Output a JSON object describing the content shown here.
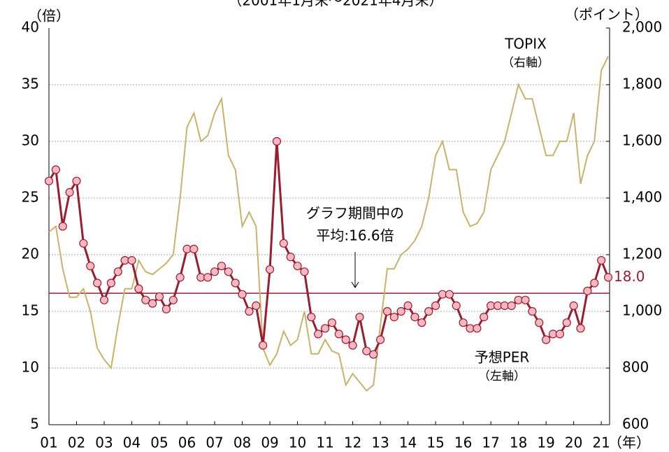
{
  "chart_data": {
    "type": "line",
    "subtitle": "（2001年1月末～2021年4月末）",
    "y_unit": "（倍）",
    "y2_unit": "（ポイント）",
    "x_unit": "（年）",
    "xlim": [
      2001,
      2021.3
    ],
    "xticks": [
      {
        "value": 2001,
        "label": "01"
      },
      {
        "value": 2002,
        "label": "02"
      },
      {
        "value": 2003,
        "label": "03"
      },
      {
        "value": 2004,
        "label": "04"
      },
      {
        "value": 2005,
        "label": "05"
      },
      {
        "value": 2006,
        "label": "06"
      },
      {
        "value": 2007,
        "label": "07"
      },
      {
        "value": 2008,
        "label": "08"
      },
      {
        "value": 2009,
        "label": "09"
      },
      {
        "value": 2010,
        "label": "10"
      },
      {
        "value": 2011,
        "label": "11"
      },
      {
        "value": 2012,
        "label": "12"
      },
      {
        "value": 2013,
        "label": "13"
      },
      {
        "value": 2014,
        "label": "14"
      },
      {
        "value": 2015,
        "label": "15"
      },
      {
        "value": 2016,
        "label": "16"
      },
      {
        "value": 2017,
        "label": "17"
      },
      {
        "value": 2018,
        "label": "18"
      },
      {
        "value": 2019,
        "label": "19"
      },
      {
        "value": 2020,
        "label": "20"
      },
      {
        "value": 2021,
        "label": "21"
      }
    ],
    "ylim": [
      5,
      40
    ],
    "yticks": [
      5,
      10,
      15,
      20,
      25,
      30,
      35,
      40
    ],
    "y2lim": [
      600,
      2000
    ],
    "y2ticks": [
      600,
      800,
      {
        "value": 1000,
        "label": "1,000"
      },
      {
        "value": 1200,
        "label": "1,200"
      },
      {
        "value": 1400,
        "label": "1,400"
      },
      {
        "value": 1600,
        "label": "1,600"
      },
      {
        "value": 1800,
        "label": "1,800"
      },
      {
        "value": 2000,
        "label": "2,000"
      }
    ],
    "grid": true,
    "x": [
      2001,
      2001.25,
      2001.5,
      2001.75,
      2002,
      2002.25,
      2002.5,
      2002.75,
      2003,
      2003.25,
      2003.5,
      2003.75,
      2004,
      2004.25,
      2004.5,
      2004.75,
      2005,
      2005.25,
      2005.5,
      2005.75,
      2006,
      2006.25,
      2006.5,
      2006.75,
      2007,
      2007.25,
      2007.5,
      2007.75,
      2008,
      2008.25,
      2008.5,
      2008.75,
      2009,
      2009.25,
      2009.5,
      2009.75,
      2010,
      2010.25,
      2010.5,
      2010.75,
      2011,
      2011.25,
      2011.5,
      2011.75,
      2012,
      2012.25,
      2012.5,
      2012.75,
      2013,
      2013.25,
      2013.5,
      2013.75,
      2014,
      2014.25,
      2014.5,
      2014.75,
      2015,
      2015.25,
      2015.5,
      2015.75,
      2016,
      2016.25,
      2016.5,
      2016.75,
      2017,
      2017.25,
      2017.5,
      2017.75,
      2018,
      2018.25,
      2018.5,
      2018.75,
      2019,
      2019.25,
      2019.5,
      2019.75,
      2020,
      2020.25,
      2020.5,
      2020.75,
      2021,
      2021.25
    ],
    "series": [
      {
        "name": "TOPIX",
        "name_note": "（右軸）",
        "color": "#c9b26a",
        "axis": "y2",
        "markers": false,
        "values": [
          1280,
          1300,
          1150,
          1050,
          1050,
          1080,
          1000,
          870,
          830,
          800,
          950,
          1080,
          1080,
          1180,
          1140,
          1130,
          1150,
          1170,
          1200,
          1400,
          1650,
          1700,
          1600,
          1620,
          1700,
          1750,
          1550,
          1500,
          1300,
          1350,
          1300,
          870,
          810,
          850,
          930,
          880,
          900,
          1000,
          850,
          850,
          900,
          860,
          850,
          740,
          780,
          750,
          720,
          740,
          950,
          1150,
          1150,
          1200,
          1220,
          1250,
          1300,
          1400,
          1550,
          1600,
          1500,
          1500,
          1350,
          1300,
          1310,
          1350,
          1500,
          1550,
          1600,
          1700,
          1800,
          1750,
          1750,
          1650,
          1550,
          1550,
          1600,
          1600,
          1700,
          1450,
          1550,
          1600,
          1850,
          1900
        ]
      },
      {
        "name": "予想PER",
        "name_note": "（左軸）",
        "color": "#9b1b30",
        "marker_fill": "#f4b8c0",
        "axis": "y",
        "markers": true,
        "values": [
          26.5,
          27.5,
          22.5,
          25.5,
          26.5,
          21,
          19,
          17.5,
          16,
          17.5,
          18.5,
          19.5,
          19.5,
          17,
          16,
          15.7,
          16.3,
          15.2,
          16,
          18,
          20.5,
          20.5,
          18,
          18,
          18.5,
          19,
          18.5,
          17.5,
          16.5,
          15,
          15.5,
          12,
          18.7,
          30,
          21,
          19.8,
          19,
          18.5,
          14.5,
          13,
          13.5,
          14,
          13,
          12.5,
          12,
          14.5,
          11.5,
          11.2,
          12.5,
          15,
          14.5,
          15,
          15.5,
          14.5,
          14,
          15,
          15.5,
          16.5,
          16.5,
          15.5,
          14,
          13.5,
          13.5,
          14.5,
          15.5,
          15.5,
          15.5,
          15.5,
          16,
          16,
          15,
          14,
          12.5,
          13,
          13,
          14,
          15.5,
          13.5,
          16.8,
          17.5,
          19.5,
          18.0
        ],
        "end_label": "18.0"
      }
    ],
    "average": {
      "value": 16.6,
      "color": "#9b1b30",
      "label_lines": [
        "グラフ期間中の",
        "平均:16.6倍"
      ]
    }
  }
}
